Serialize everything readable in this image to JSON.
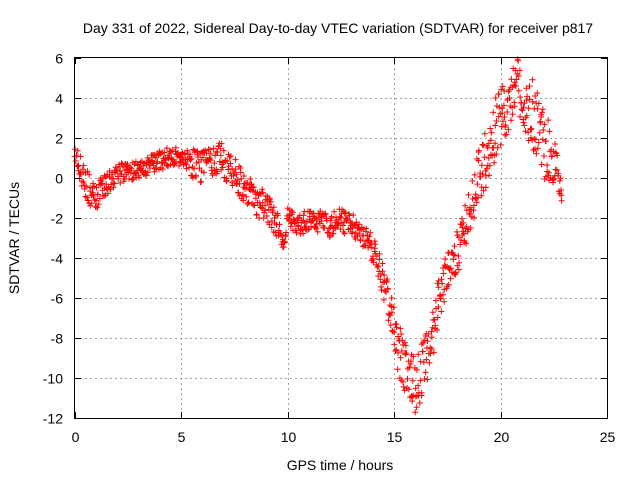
{
  "chart_data": {
    "type": "scatter",
    "title": "Day 331 of 2022, Sidereal Day-to-day VTEC variation (SDTVAR) for receiver p817",
    "xlabel": "GPS time / hours",
    "ylabel": "SDTVAR / TECUs",
    "xlim": [
      0,
      25
    ],
    "ylim": [
      -12,
      6
    ],
    "xticks": [
      "0",
      "5",
      "10",
      "15",
      "20",
      "25"
    ],
    "xtick_values": [
      0,
      5,
      10,
      15,
      20,
      25
    ],
    "yticks": [
      "6",
      "4",
      "2",
      "0",
      "-2",
      "-4",
      "-6",
      "-8",
      "-10",
      "-12"
    ],
    "ytick_values": [
      6,
      4,
      2,
      0,
      -2,
      -4,
      -6,
      -8,
      -10,
      -12
    ],
    "grid": true,
    "marker": "+",
    "color": "#ff0000",
    "series": [
      {
        "name": "SDTVAR",
        "x": [
          0.0,
          0.2,
          0.4,
          0.6,
          0.8,
          1.0,
          1.2,
          1.5,
          1.8,
          2.0,
          2.3,
          2.6,
          3.0,
          3.3,
          3.6,
          4.0,
          4.3,
          4.6,
          5.0,
          5.3,
          5.6,
          6.0,
          6.3,
          6.6,
          7.0,
          7.3,
          7.6,
          8.0,
          8.3,
          8.6,
          9.0,
          9.3,
          9.6,
          9.8,
          10.0,
          10.3,
          10.6,
          11.0,
          11.3,
          11.6,
          12.0,
          12.3,
          12.6,
          13.0,
          13.3,
          13.6,
          14.0,
          14.3,
          14.6,
          14.9,
          15.2,
          15.5,
          15.8,
          16.0,
          16.2,
          16.5,
          16.8,
          17.0,
          17.3,
          17.6,
          18.0,
          18.3,
          18.6,
          19.0,
          19.3,
          19.6,
          20.0,
          20.3,
          20.6,
          20.8,
          21.0,
          21.2,
          21.5,
          21.8,
          22.0,
          22.3,
          22.6,
          22.9
        ],
        "y": [
          1.0,
          0.5,
          0.0,
          -0.5,
          -0.8,
          -1.0,
          -0.6,
          -0.3,
          0.0,
          0.2,
          0.3,
          0.4,
          0.5,
          0.6,
          0.7,
          0.9,
          1.0,
          1.1,
          1.0,
          0.9,
          0.7,
          0.5,
          0.8,
          1.0,
          0.8,
          0.3,
          0.0,
          -0.5,
          -0.8,
          -1.2,
          -1.5,
          -2.0,
          -2.5,
          -3.6,
          -2.0,
          -2.2,
          -2.4,
          -2.0,
          -2.3,
          -2.1,
          -2.5,
          -2.0,
          -2.2,
          -2.3,
          -2.8,
          -3.0,
          -3.5,
          -4.5,
          -5.5,
          -7.0,
          -8.5,
          -9.5,
          -10.2,
          -10.5,
          -9.8,
          -9.0,
          -7.8,
          -6.5,
          -5.5,
          -4.5,
          -3.5,
          -2.5,
          -1.5,
          0.0,
          1.0,
          2.0,
          3.0,
          3.5,
          4.2,
          4.8,
          4.0,
          3.6,
          3.2,
          2.6,
          1.8,
          1.2,
          0.6,
          -0.4
        ],
        "scatter": [
          0.8,
          0.7,
          0.8,
          0.8,
          0.7,
          0.6,
          0.6,
          0.6,
          0.5,
          0.5,
          0.5,
          0.5,
          0.5,
          0.5,
          0.5,
          0.5,
          0.5,
          0.5,
          0.5,
          0.5,
          0.8,
          0.8,
          0.8,
          0.8,
          0.9,
          0.9,
          0.9,
          0.9,
          0.8,
          0.8,
          0.8,
          0.7,
          0.6,
          0.2,
          0.5,
          0.5,
          0.5,
          0.6,
          0.5,
          0.5,
          0.5,
          0.6,
          0.6,
          0.6,
          0.6,
          0.6,
          0.7,
          0.8,
          1.0,
          1.2,
          1.4,
          1.5,
          1.5,
          1.4,
          1.5,
          1.5,
          1.4,
          1.3,
          1.2,
          1.2,
          1.2,
          1.2,
          1.3,
          1.4,
          1.5,
          1.6,
          1.5,
          1.5,
          1.3,
          1.2,
          1.6,
          1.7,
          1.8,
          1.9,
          1.8,
          1.5,
          1.2,
          0.8
        ]
      }
    ]
  }
}
